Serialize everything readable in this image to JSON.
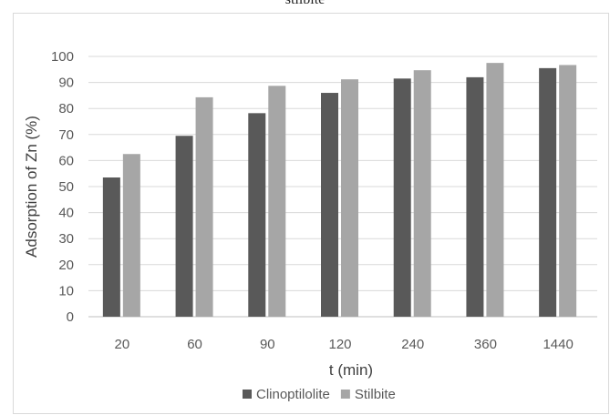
{
  "caption": "stilbite",
  "chart_data": {
    "type": "bar",
    "xlabel": "t (min)",
    "ylabel": "Adsorption of Zn (%)",
    "ylim": [
      0,
      100
    ],
    "ytick_step": 10,
    "grid": true,
    "legend_position": "bottom",
    "categories": [
      "20",
      "60",
      "90",
      "120",
      "240",
      "360",
      "1440"
    ],
    "series": [
      {
        "name": "Clinoptilolite",
        "color": "#595959",
        "values": [
          53.5,
          69.5,
          78.2,
          86.0,
          91.5,
          92.0,
          95.5
        ]
      },
      {
        "name": "Stilbite",
        "color": "#a6a6a6",
        "values": [
          62.5,
          84.3,
          88.7,
          91.2,
          94.7,
          97.5,
          96.7
        ]
      }
    ]
  }
}
